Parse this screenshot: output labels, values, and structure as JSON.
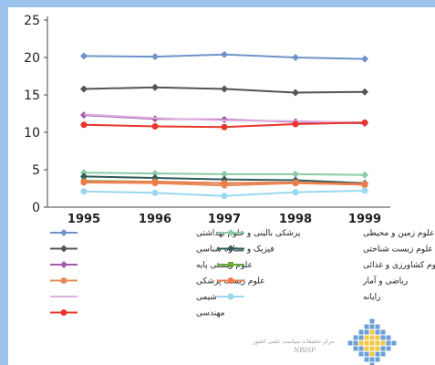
{
  "chart_data": {
    "type": "line",
    "title": "",
    "xlabel": "",
    "ylabel": "",
    "x": [
      "1995",
      "1996",
      "1997",
      "1998",
      "1999"
    ],
    "ylim": [
      0,
      25
    ],
    "yticks": [
      "0",
      "5",
      "10",
      "15",
      "20",
      "25"
    ],
    "grid": false,
    "legend_position": "bottom",
    "series": [
      {
        "name": "پزشکی بالینی و علوم بهداشتی",
        "color": "#6f93c8",
        "marker": "diamond",
        "values": [
          20.2,
          20.1,
          20.4,
          20.0,
          19.8
        ]
      },
      {
        "name": "علوم زمین و محیطی",
        "color": "#8ccaa8",
        "marker": "diamond",
        "values": [
          4.6,
          4.5,
          4.4,
          4.4,
          4.3
        ]
      },
      {
        "name": "فیزیک و ستاره شناسی",
        "color": "#545454",
        "marker": "diamond",
        "values": [
          15.8,
          16.0,
          15.8,
          15.3,
          15.4
        ]
      },
      {
        "name": "علوم زیست شناختی",
        "color": "#2f5c57",
        "marker": "diamond",
        "values": [
          4.1,
          3.9,
          3.7,
          3.6,
          3.2
        ]
      },
      {
        "name": "علوم زیستی پایه",
        "color": "#a05aa8",
        "marker": "diamond",
        "values": [
          12.3,
          11.8,
          11.7,
          11.4,
          11.2
        ]
      },
      {
        "name": "علوم کشاورزی و غذائی",
        "color": "#6aa83a",
        "marker": "square",
        "values": [
          3.5,
          3.4,
          3.2,
          3.3,
          3.0
        ]
      },
      {
        "name": "علوم زیست پزشکی",
        "color": "#e88a5a",
        "marker": "circle",
        "values": [
          3.3,
          3.2,
          2.9,
          3.2,
          3.0
        ]
      },
      {
        "name": "ریاضی و آمار",
        "color": "#ef7a4a",
        "marker": "circle",
        "values": [
          3.4,
          3.4,
          3.2,
          3.3,
          3.1
        ]
      },
      {
        "name": "شیمی",
        "color": "#e0b0e0",
        "marker": "none",
        "values": [
          12.4,
          11.9,
          11.6,
          11.5,
          11.3
        ]
      },
      {
        "name": "رایانه",
        "color": "#9ad8ee",
        "marker": "circle",
        "values": [
          2.1,
          1.9,
          1.5,
          2.0,
          2.2
        ]
      },
      {
        "name": "مهندسی",
        "color": "#e8362a",
        "marker": "circle",
        "values": [
          11.0,
          10.8,
          10.7,
          11.1,
          11.3
        ]
      }
    ]
  },
  "watermark": {
    "line1": "مرکز تحقیقات سیاست علمی کشور",
    "line2": "NRISP"
  },
  "colors": {
    "frame": "#9cc2ee",
    "logo": "#f2c84a"
  }
}
